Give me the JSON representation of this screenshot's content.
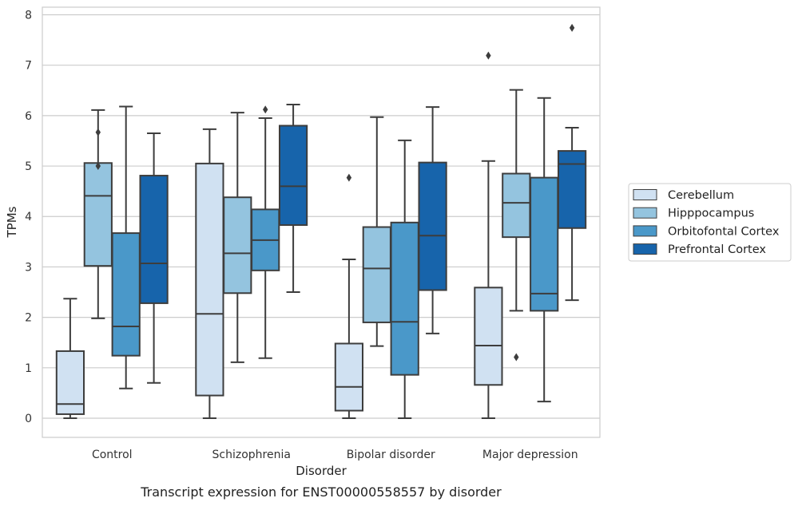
{
  "chart_data": {
    "type": "box",
    "title": "",
    "caption": "Transcript expression for ENST00000558557 by disorder",
    "xlabel": "Disorder",
    "ylabel": "TPMs",
    "ylim": [
      -0.38,
      8.15
    ],
    "yticks": [
      "0",
      "1",
      "2",
      "3",
      "4",
      "5",
      "6",
      "7",
      "8"
    ],
    "grid": "horizontal",
    "legend_position": "right",
    "categories": [
      "Control",
      "Schizophrenia",
      "Bipolar disorder",
      "Major depression"
    ],
    "series": [
      {
        "name": "Cerebellum",
        "color": "#d0e1f2",
        "boxes": [
          {
            "whislo": 0.0,
            "q1": 0.08,
            "med": 0.28,
            "q3": 1.33,
            "whishi": 2.37,
            "fliers": []
          },
          {
            "whislo": 0.0,
            "q1": 0.45,
            "med": 2.07,
            "q3": 5.05,
            "whishi": 5.73,
            "fliers": []
          },
          {
            "whislo": 0.0,
            "q1": 0.15,
            "med": 0.62,
            "q3": 1.48,
            "whishi": 3.15,
            "fliers": [
              4.77
            ]
          },
          {
            "whislo": 0.0,
            "q1": 0.66,
            "med": 1.44,
            "q3": 2.59,
            "whishi": 5.1,
            "fliers": [
              7.19
            ]
          }
        ]
      },
      {
        "name": "Hipppocampus",
        "color": "#94c4df",
        "boxes": [
          {
            "whislo": 1.98,
            "q1": 3.02,
            "med": 4.41,
            "q3": 5.06,
            "whishi": 6.11,
            "fliers": [
              5.0,
              5.67
            ]
          },
          {
            "whislo": 1.11,
            "q1": 2.48,
            "med": 3.27,
            "q3": 4.38,
            "whishi": 6.06,
            "fliers": []
          },
          {
            "whislo": 1.43,
            "q1": 1.9,
            "med": 2.97,
            "q3": 3.79,
            "whishi": 5.97,
            "fliers": []
          },
          {
            "whislo": 2.13,
            "q1": 3.59,
            "med": 4.27,
            "q3": 4.85,
            "whishi": 6.51,
            "fliers": [
              1.21
            ]
          }
        ]
      },
      {
        "name": "Orbitofontal Cortex",
        "color": "#4a98c9",
        "boxes": [
          {
            "whislo": 0.59,
            "q1": 1.24,
            "med": 1.82,
            "q3": 3.67,
            "whishi": 6.18,
            "fliers": []
          },
          {
            "whislo": 1.19,
            "q1": 2.93,
            "med": 3.53,
            "q3": 4.14,
            "whishi": 5.95,
            "fliers": [
              6.12
            ]
          },
          {
            "whislo": 0.0,
            "q1": 0.86,
            "med": 1.91,
            "q3": 3.88,
            "whishi": 5.51,
            "fliers": []
          },
          {
            "whislo": 0.33,
            "q1": 2.13,
            "med": 2.47,
            "q3": 4.77,
            "whishi": 6.35,
            "fliers": []
          }
        ]
      },
      {
        "name": "Prefrontal Cortex",
        "color": "#1764ab",
        "boxes": [
          {
            "whislo": 0.7,
            "q1": 2.28,
            "med": 3.07,
            "q3": 4.81,
            "whishi": 5.65,
            "fliers": []
          },
          {
            "whislo": 2.5,
            "q1": 3.83,
            "med": 4.6,
            "q3": 5.8,
            "whishi": 6.22,
            "fliers": []
          },
          {
            "whislo": 1.68,
            "q1": 2.54,
            "med": 3.62,
            "q3": 5.07,
            "whishi": 6.17,
            "fliers": []
          },
          {
            "whislo": 2.34,
            "q1": 3.77,
            "med": 5.04,
            "q3": 5.3,
            "whishi": 5.76,
            "fliers": [
              7.74
            ]
          }
        ]
      }
    ]
  }
}
